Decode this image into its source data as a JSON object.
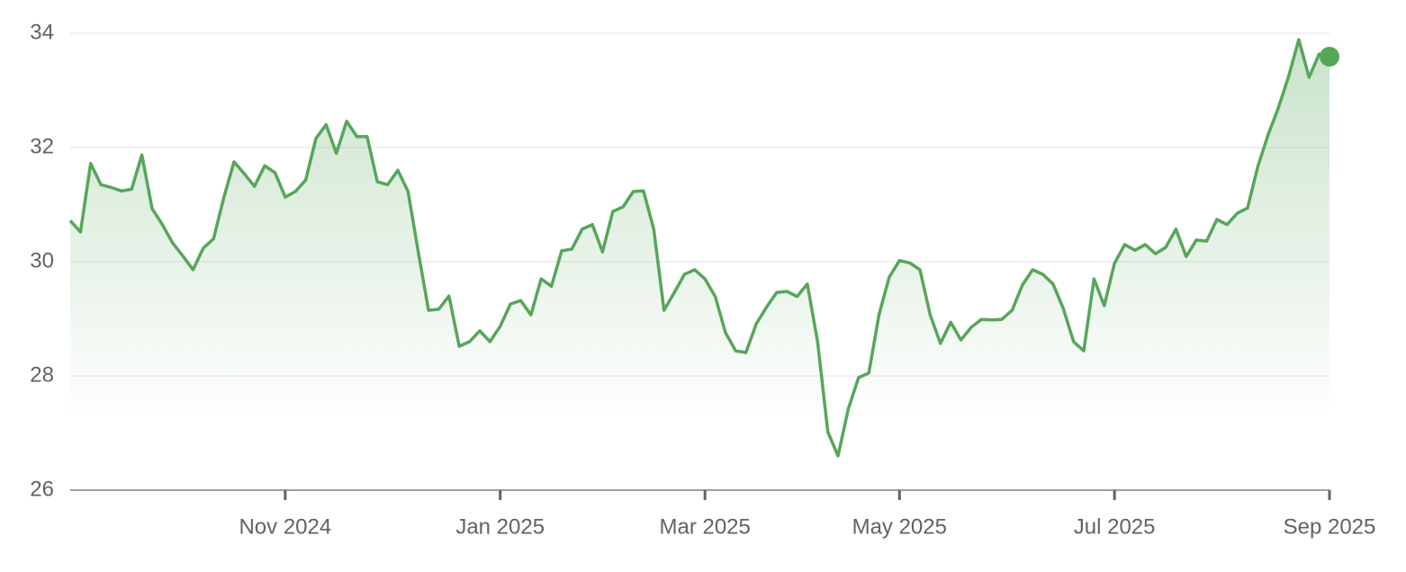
{
  "chart_data": {
    "type": "line",
    "color": "#57a65a",
    "grid": true,
    "ylim": [
      26,
      34
    ],
    "yticks": [
      26,
      28,
      30,
      32,
      34
    ],
    "categories": [
      null,
      null,
      null,
      null,
      null,
      null,
      null,
      null,
      null,
      null,
      null,
      null,
      null,
      null,
      null,
      null,
      null,
      null,
      null,
      null,
      null,
      "Nov 2024",
      null,
      null,
      null,
      null,
      null,
      null,
      null,
      null,
      null,
      null,
      null,
      null,
      null,
      null,
      null,
      null,
      null,
      null,
      null,
      null,
      "Jan 2025",
      null,
      null,
      null,
      null,
      null,
      null,
      null,
      null,
      null,
      null,
      null,
      null,
      null,
      null,
      null,
      null,
      null,
      null,
      null,
      "Mar 2025",
      null,
      null,
      null,
      null,
      null,
      null,
      null,
      null,
      null,
      null,
      null,
      null,
      null,
      null,
      null,
      null,
      null,
      null,
      "May 2025",
      null,
      null,
      null,
      null,
      null,
      null,
      null,
      null,
      null,
      null,
      null,
      null,
      null,
      null,
      null,
      null,
      null,
      null,
      null,
      null,
      "Jul 2025",
      null,
      null,
      null,
      null,
      null,
      null,
      null,
      null,
      null,
      null,
      null,
      null,
      null,
      null,
      null,
      null,
      null,
      null,
      null,
      null,
      "Sep 2025"
    ],
    "values": [
      30.72,
      30.52,
      31.72,
      31.35,
      31.3,
      31.24,
      31.27,
      31.87,
      30.93,
      30.65,
      30.33,
      30.1,
      29.86,
      30.24,
      30.4,
      31.12,
      31.75,
      31.54,
      31.32,
      31.68,
      31.56,
      31.13,
      31.23,
      31.43,
      32.16,
      32.4,
      31.9,
      32.46,
      32.19,
      32.19,
      31.4,
      31.35,
      31.6,
      31.23,
      30.17,
      29.15,
      29.17,
      29.4,
      28.52,
      28.6,
      28.79,
      28.6,
      28.87,
      29.26,
      29.32,
      29.07,
      29.7,
      29.57,
      30.19,
      30.22,
      30.57,
      30.65,
      30.17,
      30.88,
      30.96,
      31.23,
      31.24,
      30.57,
      29.15,
      29.46,
      29.78,
      29.86,
      29.7,
      29.39,
      28.76,
      28.44,
      28.41,
      28.91,
      29.2,
      29.46,
      29.48,
      29.39,
      29.61,
      28.6,
      27.02,
      26.6,
      27.42,
      27.97,
      28.05,
      29.07,
      29.73,
      30.02,
      29.98,
      29.86,
      29.07,
      28.57,
      28.94,
      28.63,
      28.85,
      28.99,
      28.98,
      28.99,
      29.15,
      29.59,
      29.86,
      29.78,
      29.61,
      29.18,
      28.6,
      28.44,
      29.7,
      29.23,
      29.97,
      30.3,
      30.2,
      30.3,
      30.14,
      30.25,
      30.57,
      30.09,
      30.38,
      30.36,
      30.74,
      30.65,
      30.85,
      30.94,
      31.67,
      32.22,
      32.69,
      33.24,
      33.89,
      33.23,
      33.64,
      33.59
    ]
  }
}
